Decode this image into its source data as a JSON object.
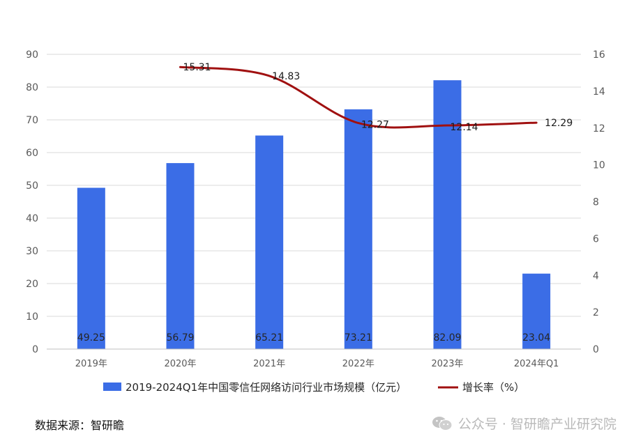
{
  "chart_data": {
    "type": "bar",
    "categories": [
      "2019年",
      "2020年",
      "2021年",
      "2022年",
      "2023年",
      "2024年Q1"
    ],
    "series": [
      {
        "name": "2019-2024Q1年中国零信任网络访问行业市场规模（亿元）",
        "type": "bar",
        "axis": "left",
        "values": [
          49.25,
          56.79,
          65.21,
          73.21,
          82.09,
          23.04
        ],
        "labels": [
          "49.25",
          "56.79",
          "65.21",
          "73.21",
          "82.09",
          "23.04"
        ],
        "color": "#3b6de6"
      },
      {
        "name": "增长率（%）",
        "type": "line",
        "axis": "right",
        "values": [
          null,
          15.31,
          14.83,
          12.27,
          12.14,
          12.29
        ],
        "labels": [
          "",
          "15.31",
          "14.83",
          "12.27",
          "12.14",
          "12.29"
        ],
        "color": "#a01010"
      }
    ],
    "y_left": {
      "min": 0,
      "max": 90,
      "ticks": [
        "0",
        "10",
        "20",
        "30",
        "40",
        "50",
        "60",
        "70",
        "80",
        "90"
      ]
    },
    "y_right": {
      "min": 0,
      "max": 16,
      "ticks": [
        "0",
        "2",
        "4",
        "6",
        "8",
        "10",
        "12",
        "14",
        "16"
      ]
    },
    "grid": true,
    "legend": "bottom"
  },
  "footer": {
    "source": "数据来源：智研瞻",
    "watermark": "公众号 · 智研瞻产业研究院"
  }
}
